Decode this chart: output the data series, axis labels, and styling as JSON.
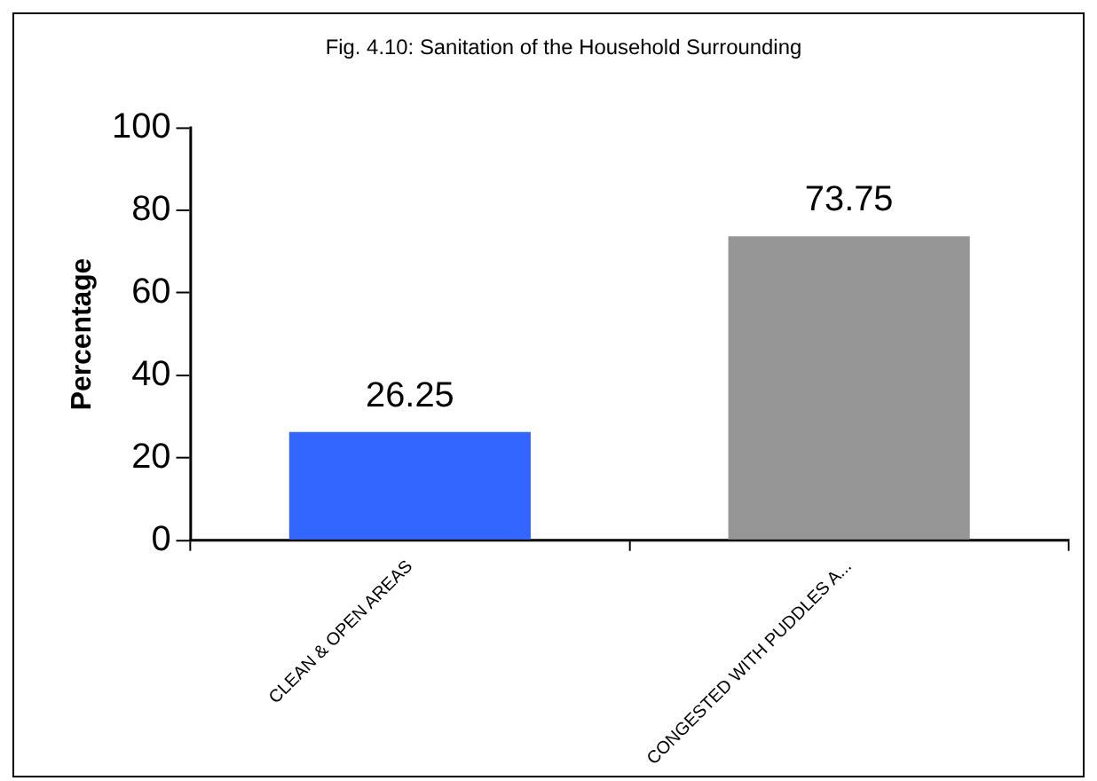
{
  "chart_data": {
    "type": "bar",
    "title": "Fig. 4.10: Sanitation of the Household Surrounding",
    "ylabel": "Percentage",
    "categories": [
      "CLEAN & OPEN AREAS",
      "CONGESTED WITH PUDDLES A..."
    ],
    "values": [
      26.25,
      73.75
    ],
    "colors": [
      "#3366ff",
      "#969696"
    ],
    "ylim": [
      0,
      100
    ],
    "yticks": [
      0,
      20,
      40,
      60,
      80,
      100
    ],
    "grid": false,
    "legend": false,
    "data_labels": true
  }
}
